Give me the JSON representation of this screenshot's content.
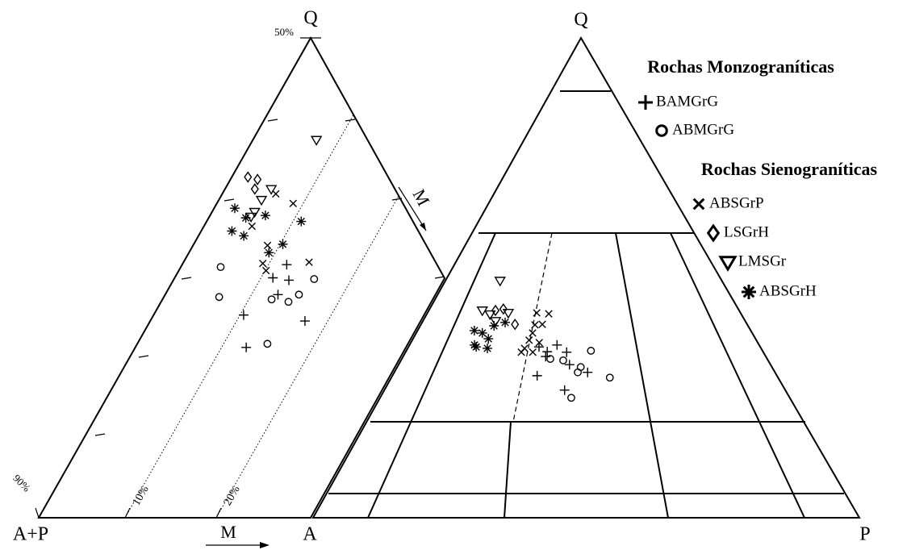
{
  "chart_data": [
    {
      "type": "section",
      "vertices": [
        "Q",
        "A+P",
        "A"
      ],
      "m_label": "M",
      "scale_ticks": [
        {
          "value": 50,
          "label": "50%"
        },
        {
          "value": 90,
          "label": "90%"
        }
      ],
      "mticks": [
        {
          "value": 10,
          "label": "10%"
        },
        {
          "value": 20,
          "label": "20%"
        }
      ],
      "series": [
        {
          "marker": "plus",
          "color": "#000",
          "values": [
            68.9,
            70.0,
            70.2,
            71.4,
            73.1,
            73.6,
            75.8
          ],
          "m": [
            12.0,
            11.3,
            13.2,
            12.9,
            10.4,
            17.5,
            12.7
          ]
        },
        {
          "marker": "circle",
          "color": "#000",
          "values": [
            69.1,
            70.1,
            71.6,
            71.8,
            72.0,
            71.4,
            75.5
          ],
          "m": [
            4.9,
            15.9,
            6.6,
            12.5,
            14.5,
            15.2,
            14.8
          ]
        },
        {
          "marker": "x",
          "color": "#000",
          "values": [
            63.0,
            63.8,
            65.7,
            67.3,
            68.8,
            68.7,
            69.4
          ],
          "m": [
            6.4,
            8.9,
            5.8,
            8.7,
            9.3,
            14.3,
            10.1
          ]
        },
        {
          "marker": "diamond",
          "color": "#000",
          "values": [
            61.6,
            61.8,
            62.6
          ],
          "m": [
            2.3,
            3.5,
            3.8
          ]
        },
        {
          "marker": "triangle",
          "color": "#000",
          "values": [
            58.5,
            62.6,
            63.5,
            64.5,
            64.9
          ],
          "m": [
            7.5,
            5.6,
            5.2,
            5.2,
            5.1
          ]
        },
        {
          "marker": "asterisk",
          "color": "#000",
          "values": [
            64.2,
            65.0,
            64.8,
            65.3,
            66.1,
            66.5,
            67.2,
            67.9
          ],
          "m": [
            2.8,
            4.6,
            6.6,
            10.9,
            3.9,
            5.5,
            10.3,
            9.3
          ]
        }
      ]
    },
    {
      "type": "ternary",
      "vertices": [
        "Q",
        "P"
      ],
      "groups": [
        {
          "title": "Rochas Monzograníticas",
          "series": [
            {
              "name": "BAMGrG",
              "marker": "plus",
              "color": "#000",
              "q": [
                35.6,
                36.0,
                34.6,
                34.5,
                33.6,
                31.9,
                30.3,
                29.6,
                26.6
              ],
              "p": [
                23.9,
                27.0,
                25.9,
                29.5,
                26.1,
                31.3,
                35.4,
                26.5,
                33.0
              ]
            },
            {
              "name": "ABMGrG",
              "marker": "circle",
              "color": "#000",
              "q": [
                34.8,
                32.8,
                33.1,
                31.4,
                30.3,
                29.2,
                25.0
              ],
              "p": [
                33.8,
                29.7,
                27.2,
                33.6,
                33.6,
                40.0,
                35.0
              ]
            }
          ]
        },
        {
          "title": "Rochas Sienograníticas",
          "series": [
            {
              "name": "ABSGrP",
              "marker": "x",
              "color": "#000",
              "q": [
                42.7,
                42.5,
                40.2,
                40.3,
                38.5,
                37.0,
                36.5,
                35.3,
                34.5,
                34.5
              ],
              "p": [
                20.0,
                22.3,
                20.9,
                22.2,
                21.3,
                21.4,
                23.5,
                21.4,
                23.3,
                21.2
              ]
            },
            {
              "name": "LSGrH",
              "marker": "diamond",
              "color": "#000",
              "q": [
                43.5,
                40.3,
                43.2
              ],
              "p": [
                13.5,
                17.2,
                12.2
              ]
            },
            {
              "name": "LMSGr",
              "marker": "triangle",
              "color": "#000",
              "q": [
                49.4,
                43.2,
                42.4,
                41.0,
                42.7
              ],
              "p": [
                10.0,
                9.8,
                11.6,
                13.3,
                14.8
              ]
            },
            {
              "name": "ABSGrH",
              "marker": "asterisk",
              "color": "#000",
              "q": [
                39.0,
                38.5,
                40.0,
                40.7,
                36.0,
                37.3,
                35.3,
                35.6
              ],
              "p": [
                10.4,
                12.1,
                13.5,
                15.2,
                11.9,
                13.8,
                14.6,
                12.4
              ]
            }
          ]
        }
      ]
    }
  ]
}
